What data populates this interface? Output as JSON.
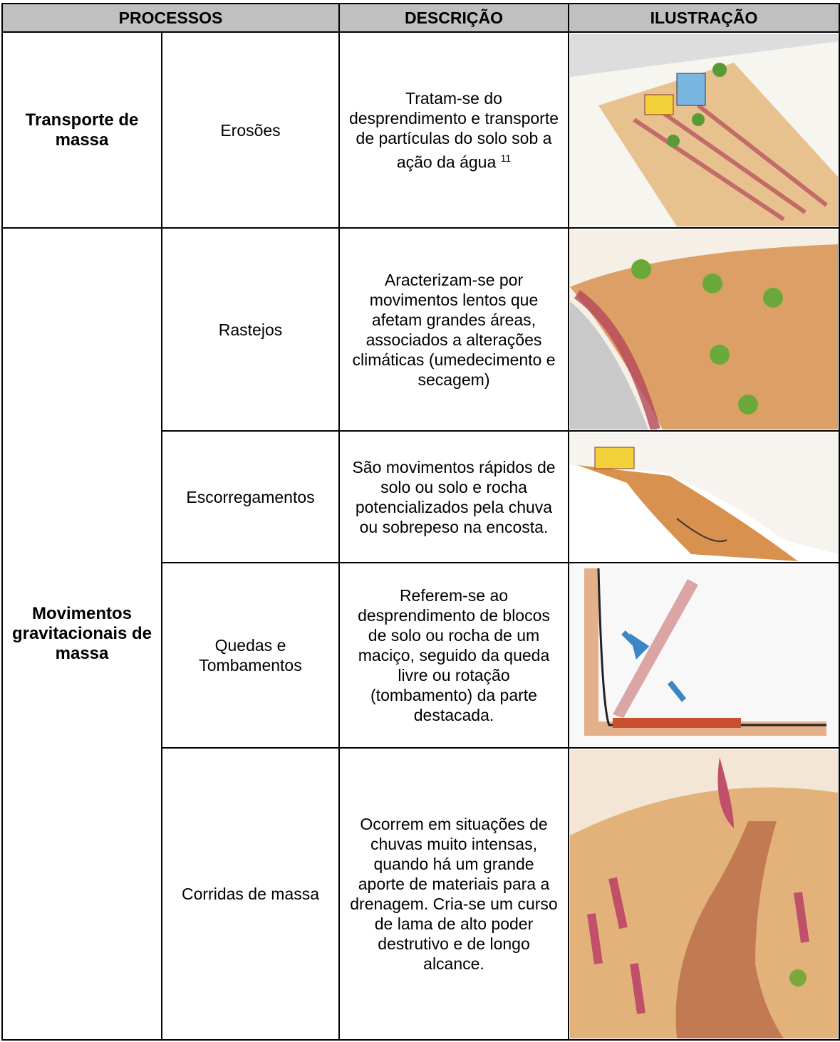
{
  "table": {
    "header": [
      "PROCESSOS",
      "DESCRIÇÃO",
      "ILUSTRAÇÃO"
    ],
    "rows": [
      {
        "group": "Transporte de massa",
        "process": "Erosões",
        "description": "Tratam-se do desprendimento e transporte de partículas do solo sob a ação da água",
        "note": "11"
      },
      {
        "group": "Movimentos gravitacionais de massa",
        "process": "Rastejos",
        "description": "Aracterizam-se por movimentos lentos que afetam grandes áreas, associados a alterações climáticas (umedecimento e secagem)"
      },
      {
        "process": "Escorregamentos",
        "description": "São movimentos rápidos de solo ou solo e rocha potencializados pela chuva ou sobrepeso na encosta."
      },
      {
        "process": "Quedas e Tombamentos",
        "description": "Referem-se ao desprendimento de blocos de solo ou rocha de um maciço, seguido da queda livre ou rotação (tombamento) da parte destacada."
      },
      {
        "process": "Corridas de massa",
        "description": "Ocorrem em situações de chuvas muito intensas, quando há um grande aporte de materiais para a drenagem. Cria-se um curso de lama de alto poder destrutivo e de longo alcance."
      }
    ]
  }
}
